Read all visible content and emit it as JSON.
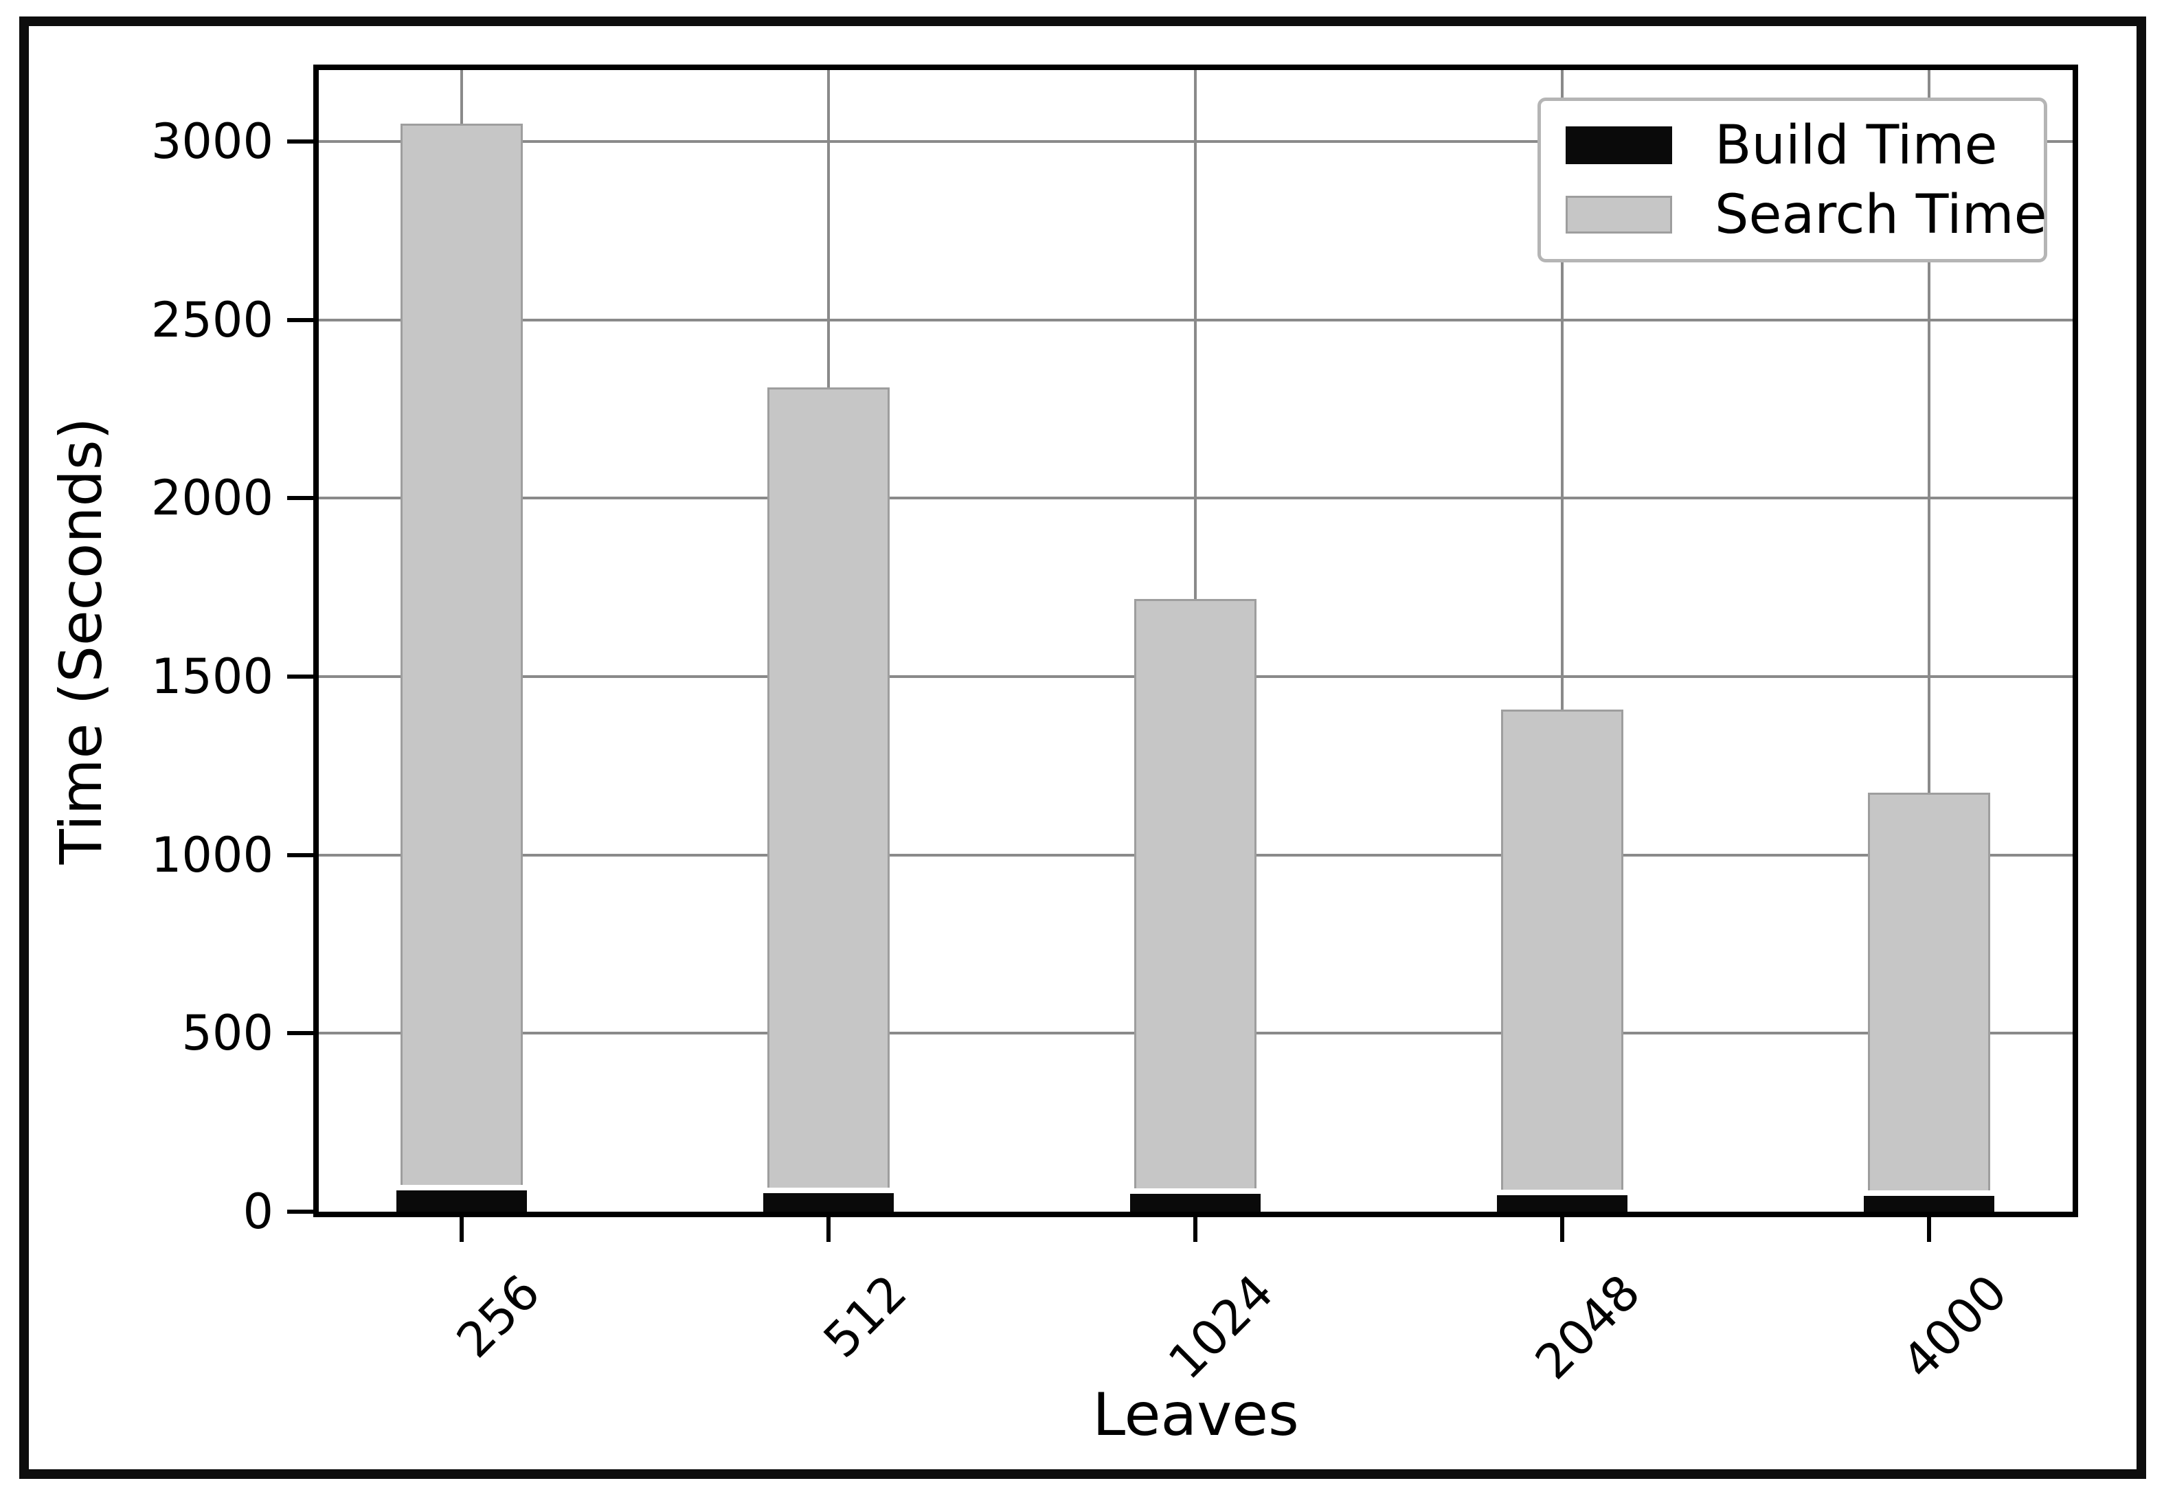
{
  "chart_data": {
    "type": "bar",
    "stacked": true,
    "title": "",
    "xlabel": "Leaves",
    "ylabel": "Time (Seconds)",
    "categories": [
      "256",
      "512",
      "1024",
      "2048",
      "4000"
    ],
    "series": [
      {
        "name": "Build Time",
        "color": "#0a0a0a",
        "values": [
          60,
          52,
          50,
          46,
          45
        ]
      },
      {
        "name": "Search Time",
        "color": "#c6c6c6",
        "values": [
          2990,
          2258,
          1668,
          1362,
          1130
        ]
      }
    ],
    "stacked_totals": [
      3050,
      2310,
      1718,
      1408,
      1175
    ],
    "ylim": [
      0,
      3200
    ],
    "yticks": [
      0,
      500,
      1000,
      1500,
      2000,
      2500,
      3000
    ],
    "grid": true,
    "legend_position": "upper right",
    "colors": {
      "build_bar": "#0a0a0a",
      "search_bar": "#c6c6c6",
      "bar_edge": "#9e9e9e",
      "gridline": "#8a8a8a",
      "spine": "#000000",
      "legend_border": "#b5b5b5",
      "text": "#000000"
    }
  }
}
